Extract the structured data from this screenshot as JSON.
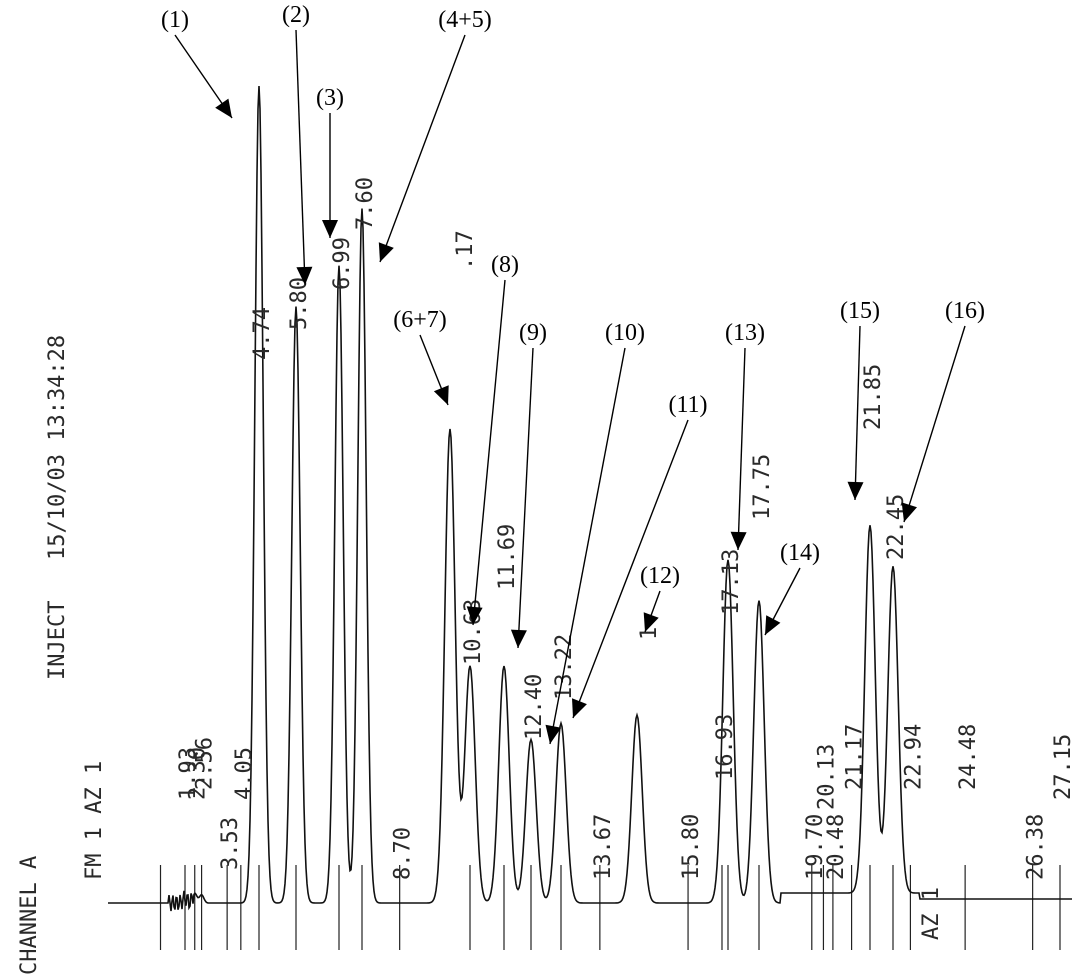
{
  "chart_data": {
    "type": "line",
    "header": {
      "channel": "CHANNEL A",
      "inject": "INJECT",
      "date_time": "15/10/03 13:34:28",
      "fm_az": "FM 1 AZ 1"
    },
    "x_unit": "min",
    "peak_callouts": [
      {
        "label": "(1)",
        "rt": 4.74
      },
      {
        "label": "(2)",
        "rt": 5.8
      },
      {
        "label": "(3)",
        "rt": 6.99
      },
      {
        "label": "(4+5)",
        "rt": 7.6
      },
      {
        "label": "(6+7)",
        "rt": 10.17
      },
      {
        "label": "(8)",
        "rt": 10.63
      },
      {
        "label": "(9)",
        "rt": 11.69
      },
      {
        "label": "(10)",
        "rt": 12.4
      },
      {
        "label": "(11)",
        "rt": 13.22
      },
      {
        "label": "(12)",
        "rt": 14.1
      },
      {
        "label": "(13)",
        "rt": 17.13
      },
      {
        "label": "(14)",
        "rt": 17.75
      },
      {
        "label": "(15)",
        "rt": 21.85
      },
      {
        "label": "(16)",
        "rt": 22.45
      }
    ],
    "retention_time_labels": [
      "1.93",
      "2.30",
      "2.56",
      "3.53",
      "4.05",
      "4.74",
      "5.80",
      "6.99",
      "7.60",
      "8.70",
      ".17",
      "10.63",
      "11.69",
      "12.40",
      "13.22",
      "13.67",
      "1",
      "15.80",
      "16.93",
      "17.13",
      "17.75",
      "19.70",
      "20.13",
      "20.48",
      "21.17",
      "21.85",
      "22.45",
      "22.94",
      "24.48",
      "26.38",
      "27.15"
    ],
    "footer_marker": "AZ 1",
    "peaks": [
      {
        "rt": 1.93,
        "h": 0.006
      },
      {
        "rt": 2.3,
        "h": 0.012
      },
      {
        "rt": 2.56,
        "h": 0.01
      },
      {
        "rt": 4.74,
        "h": 1.0
      },
      {
        "rt": 5.8,
        "h": 0.73
      },
      {
        "rt": 6.99,
        "h": 0.78
      },
      {
        "rt": 7.6,
        "h": 0.85
      },
      {
        "rt": 10.17,
        "h": 0.58
      },
      {
        "rt": 10.63,
        "h": 0.29
      },
      {
        "rt": 11.69,
        "h": 0.29
      },
      {
        "rt": 12.4,
        "h": 0.2
      },
      {
        "rt": 13.22,
        "h": 0.22
      },
      {
        "rt": 14.1,
        "h": 0.23
      },
      {
        "rt": 17.13,
        "h": 0.42
      },
      {
        "rt": 17.75,
        "h": 0.37
      },
      {
        "rt": 21.85,
        "h": 0.45
      },
      {
        "rt": 22.45,
        "h": 0.4
      }
    ]
  }
}
